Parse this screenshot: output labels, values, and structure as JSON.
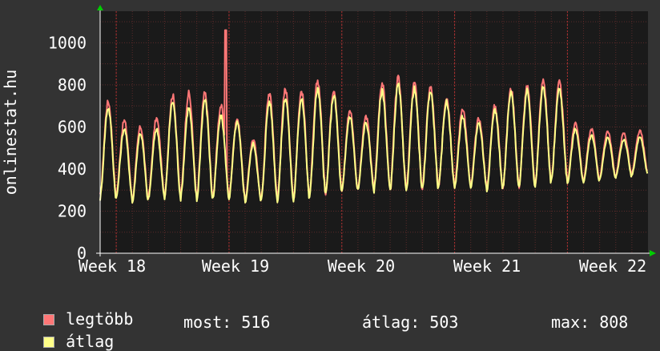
{
  "chart_data": {
    "type": "line",
    "ylabel": "onlinestat.hu",
    "ylim": [
      0,
      1150
    ],
    "y_ticks": [
      0,
      200,
      400,
      600,
      800,
      1000
    ],
    "x_ticks": [
      "Week 18",
      "Week 19",
      "Week 20",
      "Week 21",
      "Week 22"
    ],
    "grid": true,
    "days": 34,
    "series": [
      {
        "name": "legtöbb",
        "color": "#ff7777",
        "daily_peak": [
          720,
          630,
          600,
          640,
          750,
          760,
          760,
          700,
          640,
          540,
          760,
          780,
          770,
          820,
          780,
          680,
          650,
          810,
          830,
          810,
          790,
          740,
          690,
          640,
          700,
          780,
          790,
          820,
          810,
          620,
          590,
          580,
          570,
          580
        ],
        "daily_low": [
          270,
          270,
          250,
          270,
          270,
          270,
          260,
          270,
          270,
          250,
          260,
          260,
          260,
          280,
          290,
          300,
          310,
          310,
          300,
          300,
          310,
          320,
          320,
          320,
          310,
          320,
          320,
          330,
          350,
          340,
          350,
          360,
          370,
          380
        ],
        "spike": {
          "day": 7.8,
          "value": 1060
        }
      },
      {
        "name": "átlag",
        "color": "#ffff88",
        "daily_peak": [
          690,
          590,
          570,
          590,
          720,
          690,
          730,
          650,
          620,
          520,
          720,
          740,
          740,
          780,
          750,
          650,
          620,
          770,
          800,
          780,
          770,
          720,
          650,
          620,
          680,
          760,
          770,
          790,
          780,
          590,
          560,
          550,
          540,
          550
        ],
        "daily_low": [
          260,
          260,
          240,
          260,
          260,
          260,
          250,
          260,
          260,
          240,
          250,
          250,
          250,
          270,
          280,
          290,
          300,
          300,
          290,
          290,
          300,
          310,
          310,
          310,
          300,
          310,
          310,
          320,
          340,
          330,
          340,
          350,
          360,
          370
        ]
      }
    ]
  },
  "legend": {
    "max_label": "legtöbb",
    "avg_label": "átlag"
  },
  "stats": {
    "current": "most: 516",
    "average": "átlag: 503",
    "max": "max: 808"
  }
}
